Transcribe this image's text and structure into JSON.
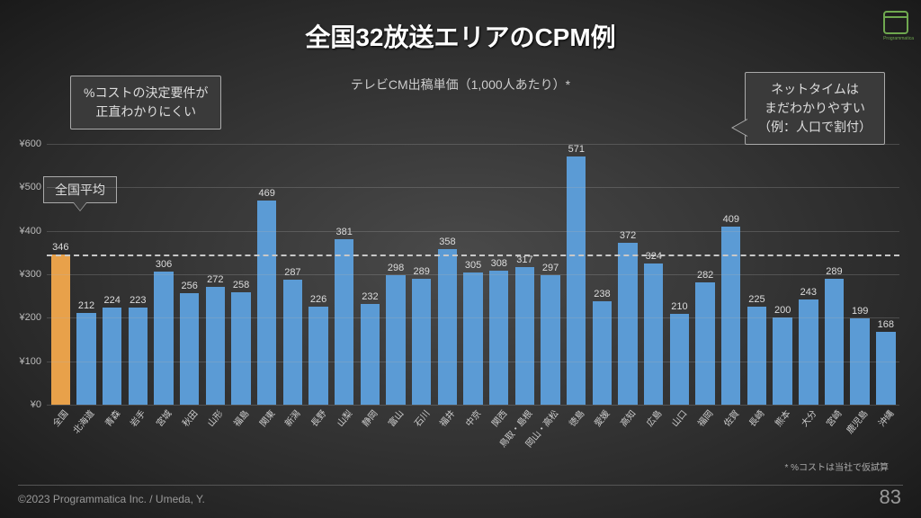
{
  "title": "全国32放送エリアのCPM例",
  "subtitle": "テレビCM出稿単価（1,000人あたり）*",
  "callout_left": {
    "line1": "%コストの決定要件が",
    "line2": "正直わかりにくい"
  },
  "callout_right": {
    "line1": "ネットタイムは",
    "line2": "まだわかりやすい",
    "line3": "（例：人口で割付）"
  },
  "avg_label": "全国平均",
  "footnote": "* %コストは当社で仮試算",
  "footer_left": "©2023  Programmatica Inc. / Umeda, Y.",
  "page_num": "83",
  "logo_text": "Programmatica",
  "chart": {
    "type": "bar",
    "ylim": [
      0,
      600
    ],
    "ytick_step": 100,
    "y_prefix": "¥",
    "avg_line_value": 346,
    "avg_line_color": "#c8c8c8",
    "grid_color": "rgba(180,180,180,0.25)",
    "background": "transparent",
    "first_bar_color": "#e8a14a",
    "bar_color": "#5b9bd5",
    "label_color": "#dddddd",
    "value_fontsize": 11,
    "xlabel_fontsize": 10,
    "xlabel_rotation_deg": -50,
    "categories": [
      "全国",
      "北海道",
      "青森",
      "岩手",
      "宮城",
      "秋田",
      "山形",
      "福島",
      "関東",
      "新潟",
      "長野",
      "山梨",
      "静岡",
      "富山",
      "石川",
      "福井",
      "中京",
      "関西",
      "鳥取・島根",
      "岡山・高松",
      "徳島",
      "愛媛",
      "高知",
      "広島",
      "山口",
      "福岡",
      "佐賀",
      "長崎",
      "熊本",
      "大分",
      "宮崎",
      "鹿児島",
      "沖縄"
    ],
    "values": [
      346,
      212,
      224,
      223,
      306,
      256,
      272,
      258,
      469,
      287,
      226,
      381,
      232,
      298,
      289,
      358,
      305,
      308,
      317,
      297,
      571,
      238,
      372,
      324,
      210,
      282,
      409,
      225,
      200,
      243,
      289,
      199,
      168
    ]
  }
}
